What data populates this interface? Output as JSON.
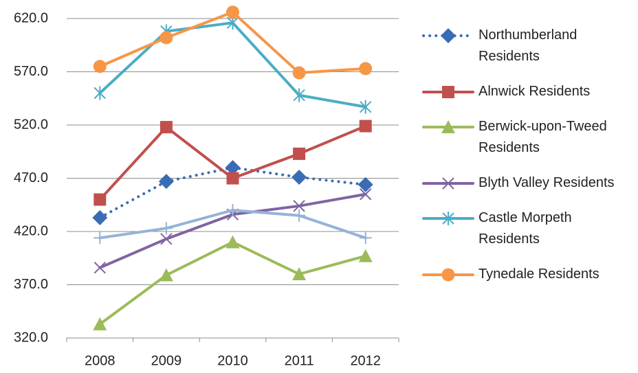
{
  "chart_data": {
    "type": "line",
    "categories": [
      "2008",
      "2009",
      "2010",
      "2011",
      "2012"
    ],
    "ylim": [
      320,
      620
    ],
    "yticks": [
      {
        "value": 320,
        "label": "320.0"
      },
      {
        "value": 370,
        "label": "370.0"
      },
      {
        "value": 420,
        "label": "420.0"
      },
      {
        "value": 470,
        "label": "470.0"
      },
      {
        "value": 520,
        "label": "520.0"
      },
      {
        "value": 570,
        "label": "570.0"
      },
      {
        "value": 620,
        "label": "620.0"
      }
    ],
    "grid": true,
    "legend": "right",
    "series": [
      {
        "name": "Northumberland Residents",
        "color": "#3a6cb5",
        "marker": "diamond",
        "dash": "dotted",
        "values": [
          433,
          467,
          480,
          471,
          464
        ]
      },
      {
        "name": "Alnwick Residents",
        "color": "#c0504d",
        "marker": "square",
        "values": [
          450,
          518,
          470,
          493,
          519
        ]
      },
      {
        "name": "Berwick-upon-Tweed Residents",
        "color": "#9bbb59",
        "marker": "triangle",
        "values": [
          333,
          379,
          410,
          380,
          397
        ]
      },
      {
        "name": "Blyth Valley Residents",
        "color": "#8064a2",
        "marker": "x",
        "values": [
          386,
          413,
          436,
          444,
          455
        ]
      },
      {
        "name": "Castle Morpeth Residents",
        "color": "#4bacc6",
        "marker": "star",
        "values": [
          550,
          608,
          616,
          548,
          537
        ]
      },
      {
        "name": "Tynedale Residents",
        "color": "#f79646",
        "marker": "circle",
        "values": [
          575,
          602,
          626,
          569,
          573
        ]
      },
      {
        "color": "#95b3d7",
        "marker": "plus",
        "values": [
          414,
          423,
          440,
          435,
          414
        ]
      }
    ]
  }
}
